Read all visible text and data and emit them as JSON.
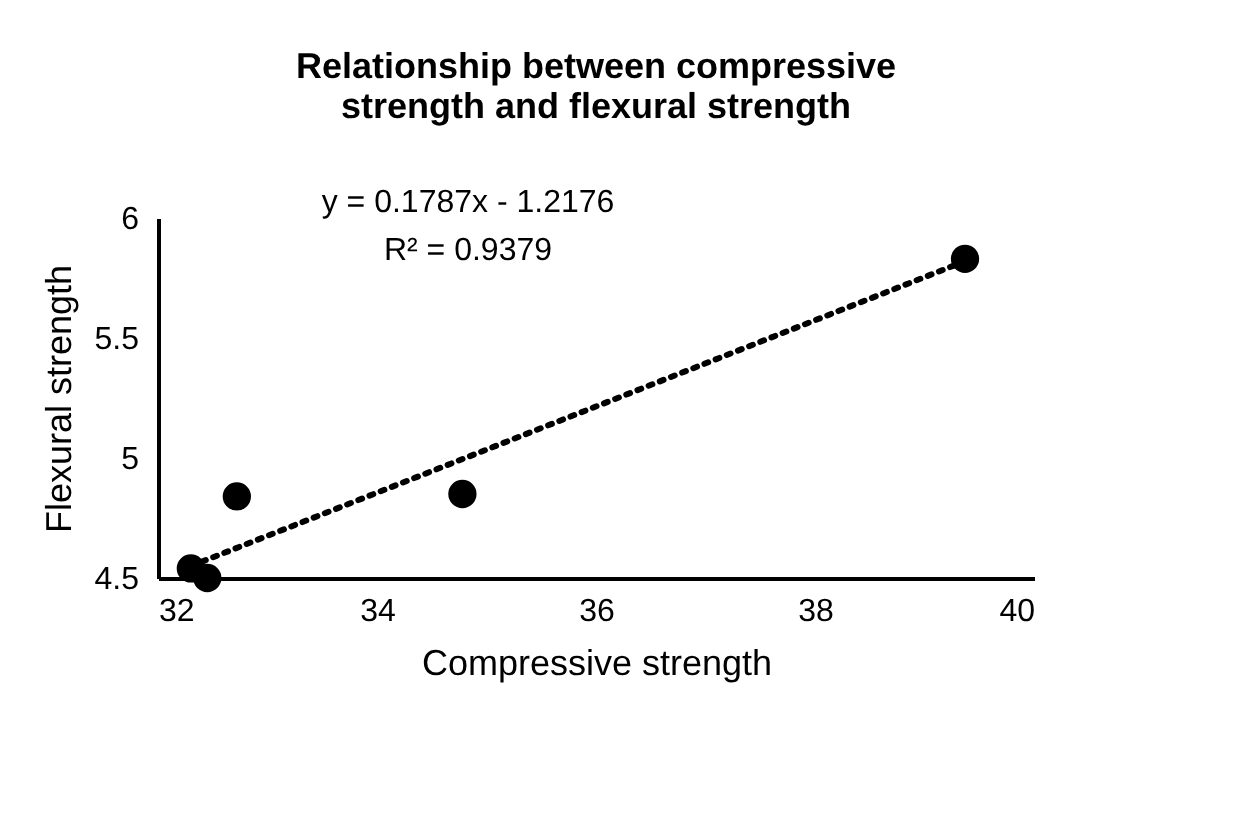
{
  "chart_data": {
    "type": "scatter",
    "title": [
      "Relationship between compressive",
      "strength and flexural strength"
    ],
    "xlabel": "Compressive strength",
    "ylabel": "Flexural strength",
    "x": [
      32.3,
      32.45,
      32.72,
      34.78,
      39.37
    ],
    "series": [
      {
        "color": "#000000",
        "marker": "circle",
        "values": [
          4.54,
          4.5,
          4.84,
          4.85,
          5.83
        ]
      },
      {
        "type": "line",
        "color": "#000000",
        "line_style": "dotted",
        "x": [
          32.3,
          39.37
        ],
        "values": [
          4.55,
          5.82
        ]
      }
    ],
    "annotations": [
      "y = 0.1787x - 1.2176",
      "R² = 0.9379"
    ],
    "xlim": [
      32,
      40
    ],
    "xticks": [
      32,
      34,
      36,
      38,
      40
    ],
    "ylim": [
      4.5,
      6
    ],
    "yticks": [
      4.5,
      5,
      5.5,
      6
    ],
    "grid": false
  }
}
